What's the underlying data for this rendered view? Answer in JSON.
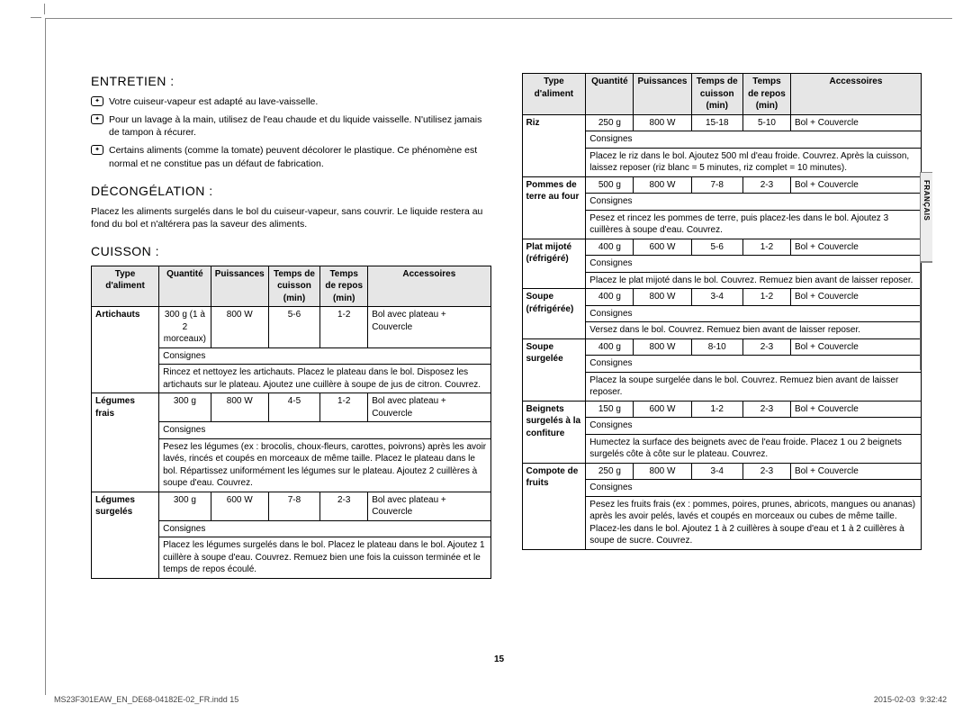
{
  "language_tab": "FRANÇAIS",
  "page_number": "15",
  "footer_left": "MS23F301EAW_EN_DE68-04182E-02_FR.indd   15",
  "footer_right": "2015-02-03   ⁠ 9:32:42",
  "sections": {
    "entretien": {
      "title": "ENTRETIEN :",
      "notes": [
        "Votre cuiseur-vapeur est adapté au lave-vaisselle.",
        "Pour un lavage à la main, utilisez de l'eau chaude et du liquide vaisselle. N'utilisez jamais de tampon à récurer.",
        "Certains aliments (comme la tomate) peuvent décolorer le plastique. Ce phénomène est normal et ne constitue pas un défaut de fabrication."
      ]
    },
    "decongelation": {
      "title": "DÉCONGÉLATION :",
      "intro": "Placez les aliments surgelés dans le bol du cuiseur-vapeur, sans couvrir. Le liquide restera au fond du bol et n'altérera pas la saveur des aliments."
    },
    "cuisson": {
      "title": "CUISSON :"
    }
  },
  "table_headers": {
    "type": "Type d'aliment",
    "quantite": "Quantité",
    "puissances": "Puissances",
    "temps_cuisson": "Temps de cuisson (min)",
    "temps_repos": "Temps de repos (min)",
    "accessoires": "Accessoires"
  },
  "consignes_label": "Consignes",
  "left_table": [
    {
      "type": "Artichauts",
      "quantite": "300 g (1 à 2 morceaux)",
      "puissances": "800 W",
      "temps_cuisson": "5-6",
      "temps_repos": "1-2",
      "accessoires": "Bol avec plateau + Couvercle",
      "consignes": "Rincez et nettoyez les artichauts. Placez le plateau dans le bol. Disposez les artichauts sur le plateau. Ajoutez une cuillère à soupe de jus de citron. Couvrez."
    },
    {
      "type": "Légumes frais",
      "quantite": "300 g",
      "puissances": "800 W",
      "temps_cuisson": "4-5",
      "temps_repos": "1-2",
      "accessoires": "Bol avec plateau + Couvercle",
      "consignes": "Pesez les légumes (ex : brocolis, choux-fleurs, carottes, poivrons) après les avoir lavés, rincés et coupés en morceaux de même taille. Placez le plateau dans le bol. Répartissez uniformément les légumes sur le plateau. Ajoutez 2 cuillères à soupe d'eau. Couvrez."
    },
    {
      "type": "Légumes surgelés",
      "quantite": "300 g",
      "puissances": "600 W",
      "temps_cuisson": "7-8",
      "temps_repos": "2-3",
      "accessoires": "Bol avec plateau + Couvercle",
      "consignes": "Placez les légumes surgelés dans le bol. Placez le plateau dans le bol. Ajoutez 1 cuillère à soupe d'eau. Couvrez. Remuez bien une fois la cuisson terminée et le temps de repos écoulé."
    }
  ],
  "right_table": [
    {
      "type": "Riz",
      "quantite": "250 g",
      "puissances": "800 W",
      "temps_cuisson": "15-18",
      "temps_repos": "5-10",
      "accessoires": "Bol + Couvercle",
      "consignes": "Placez le riz dans le bol. Ajoutez 500 ml d'eau froide. Couvrez. Après la cuisson, laissez reposer (riz blanc = 5 minutes, riz complet = 10 minutes)."
    },
    {
      "type": "Pommes de terre au four",
      "quantite": "500 g",
      "puissances": "800 W",
      "temps_cuisson": "7-8",
      "temps_repos": "2-3",
      "accessoires": "Bol + Couvercle",
      "consignes": "Pesez et rincez les pommes de terre, puis placez-les dans le bol. Ajoutez 3 cuillères à soupe d'eau. Couvrez."
    },
    {
      "type": "Plat mijoté (réfrigéré)",
      "quantite": "400 g",
      "puissances": "600 W",
      "temps_cuisson": "5-6",
      "temps_repos": "1-2",
      "accessoires": "Bol + Couvercle",
      "consignes": "Placez le plat mijoté dans le bol. Couvrez. Remuez bien avant de laisser reposer."
    },
    {
      "type": "Soupe (réfrigérée)",
      "quantite": "400 g",
      "puissances": "800 W",
      "temps_cuisson": "3-4",
      "temps_repos": "1-2",
      "accessoires": "Bol + Couvercle",
      "consignes": "Versez dans le bol. Couvrez. Remuez bien avant de laisser reposer."
    },
    {
      "type": "Soupe surgelée",
      "quantite": "400 g",
      "puissances": "800 W",
      "temps_cuisson": "8-10",
      "temps_repos": "2-3",
      "accessoires": "Bol + Couvercle",
      "consignes": "Placez la soupe surgelée dans le bol. Couvrez. Remuez bien avant de laisser reposer."
    },
    {
      "type": "Beignets surgelés à la confiture",
      "quantite": "150 g",
      "puissances": "600 W",
      "temps_cuisson": "1-2",
      "temps_repos": "2-3",
      "accessoires": "Bol + Couvercle",
      "consignes": "Humectez la surface des beignets avec de l'eau froide. Placez 1 ou 2 beignets surgelés côte à côte sur le plateau. Couvrez."
    },
    {
      "type": "Compote de fruits",
      "quantite": "250 g",
      "puissances": "800 W",
      "temps_cuisson": "3-4",
      "temps_repos": "2-3",
      "accessoires": "Bol + Couvercle",
      "consignes": "Pesez les fruits frais (ex : pommes, poires, prunes, abricots, mangues ou ananas) après les avoir pelés, lavés et coupés en morceaux ou cubes de même taille. Placez-les dans le bol. Ajoutez 1 à 2 cuillères à soupe d'eau et 1 à 2 cuillères à soupe de sucre. Couvrez."
    }
  ]
}
